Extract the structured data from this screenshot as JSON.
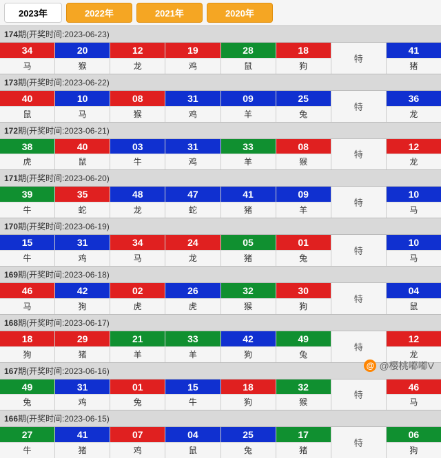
{
  "colors": {
    "red": "#e02020",
    "blue": "#1030d0",
    "green": "#109030",
    "tab_orange": "#f5a623"
  },
  "tabs": [
    {
      "label": "2023年",
      "active": true
    },
    {
      "label": "2022年",
      "active": false
    },
    {
      "label": "2021年",
      "active": false
    },
    {
      "label": "2020年",
      "active": false
    }
  ],
  "header_prefix": "期(开奖时间:",
  "special_label": "特",
  "issues": [
    {
      "issue": "174",
      "date": "2023-06-23",
      "cells": [
        {
          "n": "34",
          "z": "马",
          "c": "red"
        },
        {
          "n": "20",
          "z": "猴",
          "c": "blue"
        },
        {
          "n": "12",
          "z": "龙",
          "c": "red"
        },
        {
          "n": "19",
          "z": "鸡",
          "c": "red"
        },
        {
          "n": "28",
          "z": "鼠",
          "c": "green"
        },
        {
          "n": "18",
          "z": "狗",
          "c": "red"
        }
      ],
      "special": {
        "n": "41",
        "z": "猪",
        "c": "blue"
      }
    },
    {
      "issue": "173",
      "date": "2023-06-22",
      "cells": [
        {
          "n": "40",
          "z": "鼠",
          "c": "red"
        },
        {
          "n": "10",
          "z": "马",
          "c": "blue"
        },
        {
          "n": "08",
          "z": "猴",
          "c": "red"
        },
        {
          "n": "31",
          "z": "鸡",
          "c": "blue"
        },
        {
          "n": "09",
          "z": "羊",
          "c": "blue"
        },
        {
          "n": "25",
          "z": "兔",
          "c": "blue"
        }
      ],
      "special": {
        "n": "36",
        "z": "龙",
        "c": "blue"
      }
    },
    {
      "issue": "172",
      "date": "2023-06-21",
      "cells": [
        {
          "n": "38",
          "z": "虎",
          "c": "green"
        },
        {
          "n": "40",
          "z": "鼠",
          "c": "red"
        },
        {
          "n": "03",
          "z": "牛",
          "c": "blue"
        },
        {
          "n": "31",
          "z": "鸡",
          "c": "blue"
        },
        {
          "n": "33",
          "z": "羊",
          "c": "green"
        },
        {
          "n": "08",
          "z": "猴",
          "c": "red"
        }
      ],
      "special": {
        "n": "12",
        "z": "龙",
        "c": "red"
      }
    },
    {
      "issue": "171",
      "date": "2023-06-20",
      "cells": [
        {
          "n": "39",
          "z": "牛",
          "c": "green"
        },
        {
          "n": "35",
          "z": "蛇",
          "c": "red"
        },
        {
          "n": "48",
          "z": "龙",
          "c": "blue"
        },
        {
          "n": "47",
          "z": "蛇",
          "c": "blue"
        },
        {
          "n": "41",
          "z": "猪",
          "c": "blue"
        },
        {
          "n": "09",
          "z": "羊",
          "c": "blue"
        }
      ],
      "special": {
        "n": "10",
        "z": "马",
        "c": "blue"
      }
    },
    {
      "issue": "170",
      "date": "2023-06-19",
      "cells": [
        {
          "n": "15",
          "z": "牛",
          "c": "blue"
        },
        {
          "n": "31",
          "z": "鸡",
          "c": "blue"
        },
        {
          "n": "34",
          "z": "马",
          "c": "red"
        },
        {
          "n": "24",
          "z": "龙",
          "c": "red"
        },
        {
          "n": "05",
          "z": "猪",
          "c": "green"
        },
        {
          "n": "01",
          "z": "兔",
          "c": "red"
        }
      ],
      "special": {
        "n": "10",
        "z": "马",
        "c": "blue"
      }
    },
    {
      "issue": "169",
      "date": "2023-06-18",
      "cells": [
        {
          "n": "46",
          "z": "马",
          "c": "red"
        },
        {
          "n": "42",
          "z": "狗",
          "c": "blue"
        },
        {
          "n": "02",
          "z": "虎",
          "c": "red"
        },
        {
          "n": "26",
          "z": "虎",
          "c": "blue"
        },
        {
          "n": "32",
          "z": "猴",
          "c": "green"
        },
        {
          "n": "30",
          "z": "狗",
          "c": "red"
        }
      ],
      "special": {
        "n": "04",
        "z": "鼠",
        "c": "blue"
      }
    },
    {
      "issue": "168",
      "date": "2023-06-17",
      "cells": [
        {
          "n": "18",
          "z": "狗",
          "c": "red"
        },
        {
          "n": "29",
          "z": "猪",
          "c": "red"
        },
        {
          "n": "21",
          "z": "羊",
          "c": "green"
        },
        {
          "n": "33",
          "z": "羊",
          "c": "green"
        },
        {
          "n": "42",
          "z": "狗",
          "c": "blue"
        },
        {
          "n": "49",
          "z": "兔",
          "c": "green"
        }
      ],
      "special": {
        "n": "12",
        "z": "龙",
        "c": "red"
      }
    },
    {
      "issue": "167",
      "date": "2023-06-16",
      "cells": [
        {
          "n": "49",
          "z": "兔",
          "c": "green"
        },
        {
          "n": "31",
          "z": "鸡",
          "c": "blue"
        },
        {
          "n": "01",
          "z": "兔",
          "c": "red"
        },
        {
          "n": "15",
          "z": "牛",
          "c": "blue"
        },
        {
          "n": "18",
          "z": "狗",
          "c": "red"
        },
        {
          "n": "32",
          "z": "猴",
          "c": "green"
        }
      ],
      "special": {
        "n": "46",
        "z": "马",
        "c": "red"
      }
    },
    {
      "issue": "166",
      "date": "2023-06-15",
      "cells": [
        {
          "n": "27",
          "z": "牛",
          "c": "green"
        },
        {
          "n": "41",
          "z": "猪",
          "c": "blue"
        },
        {
          "n": "07",
          "z": "鸡",
          "c": "red"
        },
        {
          "n": "04",
          "z": "鼠",
          "c": "blue"
        },
        {
          "n": "25",
          "z": "兔",
          "c": "blue"
        },
        {
          "n": "17",
          "z": "猪",
          "c": "green"
        }
      ],
      "special": {
        "n": "06",
        "z": "狗",
        "c": "green"
      }
    }
  ],
  "watermark": {
    "icon": "@",
    "text": "@樱桃嘟嘟V"
  }
}
